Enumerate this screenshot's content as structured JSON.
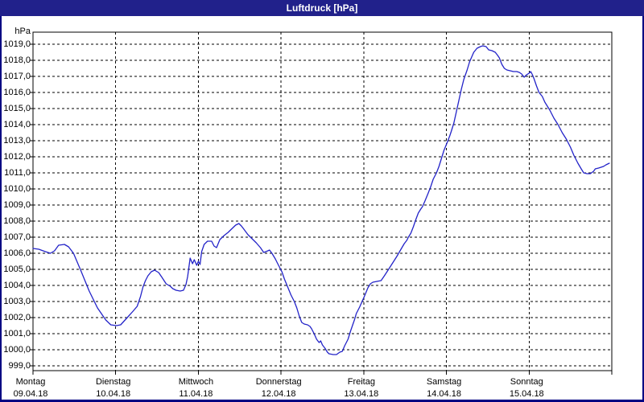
{
  "window": {
    "title": "Luftdruck [hPa]"
  },
  "colors": {
    "titlebar_bg": "#21218b",
    "titlebar_text": "#ffffff",
    "window_border": "#000082",
    "plot_bg": "#ffffff",
    "plot_border": "#000000",
    "grid": "#000000",
    "line": "#2323c8",
    "text": "#000000"
  },
  "axis": {
    "unit_label": "hPa",
    "y_tick_labels": [
      "1019,0",
      "1018,0",
      "1017,0",
      "1016,0",
      "1015,0",
      "1014,0",
      "1013,0",
      "1012,0",
      "1011,0",
      "1010,0",
      "1009,0",
      "1008,0",
      "1007,0",
      "1006,0",
      "1005,0",
      "1004,0",
      "1003,0",
      "1002,0",
      "1001,0",
      "1000,0",
      "999,0"
    ],
    "x_days": [
      {
        "name": "Montag",
        "date": "09.04.18"
      },
      {
        "name": "Dienstag",
        "date": "10.04.18"
      },
      {
        "name": "Mittwoch",
        "date": "11.04.18"
      },
      {
        "name": "Donnerstag",
        "date": "12.04.18"
      },
      {
        "name": "Freitag",
        "date": "13.04.18"
      },
      {
        "name": "Samstag",
        "date": "14.04.18"
      },
      {
        "name": "Sonntag",
        "date": "15.04.18"
      }
    ]
  },
  "chart_data": {
    "type": "line",
    "title": "Luftdruck [hPa]",
    "xlabel": "",
    "ylabel": "hPa",
    "ylim": [
      999,
      1019
    ],
    "y_step": 1,
    "xlim_days": [
      0,
      7
    ],
    "grid": true,
    "legend": "none",
    "x_unit": "days since Montag 09.04.18 00:00",
    "series": [
      {
        "name": "Luftdruck",
        "points": [
          [
            0.0,
            1006.3
          ],
          [
            0.07,
            1006.25
          ],
          [
            0.15,
            1006.1
          ],
          [
            0.21,
            1006.0
          ],
          [
            0.26,
            1006.15
          ],
          [
            0.31,
            1006.5
          ],
          [
            0.38,
            1006.55
          ],
          [
            0.43,
            1006.4
          ],
          [
            0.49,
            1006.0
          ],
          [
            0.58,
            1004.9
          ],
          [
            0.68,
            1003.65
          ],
          [
            0.78,
            1002.6
          ],
          [
            0.88,
            1001.85
          ],
          [
            0.94,
            1001.55
          ],
          [
            1.01,
            1001.5
          ],
          [
            1.06,
            1001.55
          ],
          [
            1.14,
            1002.0
          ],
          [
            1.21,
            1002.4
          ],
          [
            1.26,
            1002.7
          ],
          [
            1.3,
            1003.3
          ],
          [
            1.33,
            1003.9
          ],
          [
            1.36,
            1004.3
          ],
          [
            1.39,
            1004.6
          ],
          [
            1.43,
            1004.85
          ],
          [
            1.47,
            1004.95
          ],
          [
            1.52,
            1004.8
          ],
          [
            1.56,
            1004.5
          ],
          [
            1.61,
            1004.1
          ],
          [
            1.66,
            1003.95
          ],
          [
            1.69,
            1003.8
          ],
          [
            1.73,
            1003.7
          ],
          [
            1.78,
            1003.65
          ],
          [
            1.82,
            1003.7
          ],
          [
            1.85,
            1004.05
          ],
          [
            1.87,
            1004.55
          ],
          [
            1.9,
            1005.7
          ],
          [
            1.93,
            1005.35
          ],
          [
            1.95,
            1005.6
          ],
          [
            1.98,
            1005.25
          ],
          [
            2.0,
            1005.5
          ],
          [
            2.02,
            1005.3
          ],
          [
            2.04,
            1006.1
          ],
          [
            2.07,
            1006.55
          ],
          [
            2.11,
            1006.75
          ],
          [
            2.16,
            1006.75
          ],
          [
            2.19,
            1006.45
          ],
          [
            2.22,
            1006.35
          ],
          [
            2.26,
            1006.85
          ],
          [
            2.31,
            1007.1
          ],
          [
            2.36,
            1007.3
          ],
          [
            2.4,
            1007.5
          ],
          [
            2.45,
            1007.75
          ],
          [
            2.49,
            1007.85
          ],
          [
            2.52,
            1007.7
          ],
          [
            2.55,
            1007.5
          ],
          [
            2.6,
            1007.15
          ],
          [
            2.65,
            1006.9
          ],
          [
            2.7,
            1006.65
          ],
          [
            2.75,
            1006.35
          ],
          [
            2.79,
            1006.05
          ],
          [
            2.84,
            1006.15
          ],
          [
            2.86,
            1006.2
          ],
          [
            2.89,
            1006.0
          ],
          [
            2.93,
            1005.65
          ],
          [
            2.96,
            1005.35
          ],
          [
            2.99,
            1005.05
          ],
          [
            3.01,
            1004.85
          ],
          [
            3.04,
            1004.4
          ],
          [
            3.08,
            1003.9
          ],
          [
            3.12,
            1003.4
          ],
          [
            3.16,
            1003.0
          ],
          [
            3.19,
            1002.6
          ],
          [
            3.22,
            1002.1
          ],
          [
            3.25,
            1001.7
          ],
          [
            3.28,
            1001.6
          ],
          [
            3.32,
            1001.55
          ],
          [
            3.35,
            1001.45
          ],
          [
            3.37,
            1001.3
          ],
          [
            3.4,
            1001.0
          ],
          [
            3.43,
            1000.65
          ],
          [
            3.46,
            1000.45
          ],
          [
            3.48,
            1000.55
          ],
          [
            3.5,
            1000.3
          ],
          [
            3.53,
            1000.1
          ],
          [
            3.56,
            999.85
          ],
          [
            3.58,
            999.75
          ],
          [
            3.63,
            999.7
          ],
          [
            3.67,
            999.7
          ],
          [
            3.71,
            999.85
          ],
          [
            3.74,
            999.9
          ],
          [
            3.77,
            1000.25
          ],
          [
            3.81,
            1000.65
          ],
          [
            3.84,
            1001.15
          ],
          [
            3.87,
            1001.6
          ],
          [
            3.89,
            1001.9
          ],
          [
            3.91,
            1002.25
          ],
          [
            3.95,
            1002.65
          ],
          [
            3.98,
            1003.0
          ],
          [
            4.01,
            1003.35
          ],
          [
            4.05,
            1003.85
          ],
          [
            4.08,
            1004.1
          ],
          [
            4.11,
            1004.2
          ],
          [
            4.16,
            1004.25
          ],
          [
            4.21,
            1004.3
          ],
          [
            4.25,
            1004.6
          ],
          [
            4.3,
            1005.0
          ],
          [
            4.35,
            1005.4
          ],
          [
            4.4,
            1005.8
          ],
          [
            4.45,
            1006.25
          ],
          [
            4.49,
            1006.6
          ],
          [
            4.52,
            1006.8
          ],
          [
            4.54,
            1007.0
          ],
          [
            4.57,
            1007.25
          ],
          [
            4.6,
            1007.65
          ],
          [
            4.63,
            1008.1
          ],
          [
            4.66,
            1008.5
          ],
          [
            4.69,
            1008.75
          ],
          [
            4.71,
            1008.9
          ],
          [
            4.74,
            1009.25
          ],
          [
            4.78,
            1009.75
          ],
          [
            4.81,
            1010.15
          ],
          [
            4.84,
            1010.6
          ],
          [
            4.88,
            1011.0
          ],
          [
            4.91,
            1011.4
          ],
          [
            4.94,
            1011.9
          ],
          [
            4.97,
            1012.4
          ],
          [
            5.01,
            1012.9
          ],
          [
            5.04,
            1013.3
          ],
          [
            5.06,
            1013.6
          ],
          [
            5.09,
            1014.1
          ],
          [
            5.12,
            1014.8
          ],
          [
            5.15,
            1015.5
          ],
          [
            5.18,
            1016.2
          ],
          [
            5.21,
            1016.8
          ],
          [
            5.25,
            1017.4
          ],
          [
            5.28,
            1017.9
          ],
          [
            5.33,
            1018.5
          ],
          [
            5.37,
            1018.75
          ],
          [
            5.41,
            1018.85
          ],
          [
            5.44,
            1018.9
          ],
          [
            5.48,
            1018.85
          ],
          [
            5.51,
            1018.65
          ],
          [
            5.55,
            1018.6
          ],
          [
            5.59,
            1018.5
          ],
          [
            5.62,
            1018.3
          ],
          [
            5.64,
            1018.15
          ],
          [
            5.67,
            1017.75
          ],
          [
            5.7,
            1017.5
          ],
          [
            5.73,
            1017.4
          ],
          [
            5.77,
            1017.35
          ],
          [
            5.81,
            1017.3
          ],
          [
            5.85,
            1017.3
          ],
          [
            5.88,
            1017.25
          ],
          [
            5.91,
            1017.15
          ],
          [
            5.94,
            1016.95
          ],
          [
            5.97,
            1017.1
          ],
          [
            6.0,
            1017.2
          ],
          [
            6.02,
            1017.3
          ],
          [
            6.04,
            1017.1
          ],
          [
            6.06,
            1016.85
          ],
          [
            6.09,
            1016.4
          ],
          [
            6.12,
            1016.0
          ],
          [
            6.16,
            1015.75
          ],
          [
            6.19,
            1015.4
          ],
          [
            6.22,
            1015.15
          ],
          [
            6.25,
            1014.9
          ],
          [
            6.3,
            1014.4
          ],
          [
            6.35,
            1014.0
          ],
          [
            6.4,
            1013.5
          ],
          [
            6.45,
            1013.1
          ],
          [
            6.5,
            1012.6
          ],
          [
            6.54,
            1012.1
          ],
          [
            6.59,
            1011.6
          ],
          [
            6.63,
            1011.25
          ],
          [
            6.66,
            1011.0
          ],
          [
            6.7,
            1010.95
          ],
          [
            6.74,
            1010.95
          ],
          [
            6.78,
            1011.1
          ],
          [
            6.8,
            1011.25
          ],
          [
            6.84,
            1011.3
          ],
          [
            6.9,
            1011.4
          ],
          [
            6.93,
            1011.5
          ],
          [
            6.97,
            1011.6
          ]
        ]
      }
    ]
  }
}
